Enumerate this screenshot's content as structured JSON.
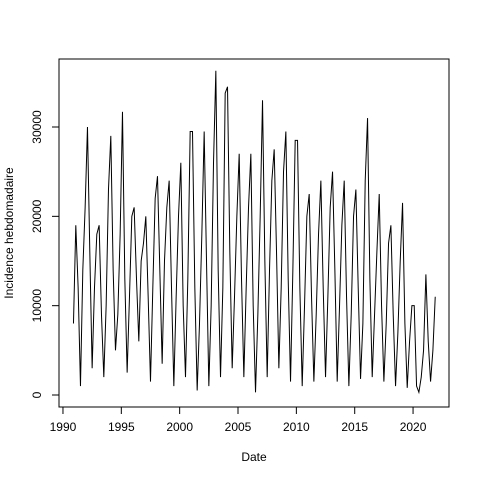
{
  "chart_data": {
    "type": "line",
    "xlabel": "Date",
    "ylabel": "Incidence hebdomadaire",
    "xlim": [
      1989.66,
      2023.08
    ],
    "ylim": [
      -1343,
      37613
    ],
    "xticks": [
      1990,
      1995,
      2000,
      2005,
      2010,
      2015,
      2020
    ],
    "yticks": [
      0,
      10000,
      20000,
      30000
    ],
    "x": [
      1990.9,
      1991.1,
      1991.3,
      1991.5,
      1991.7,
      1991.9,
      1992.1,
      1992.3,
      1992.5,
      1992.7,
      1992.9,
      1993.1,
      1993.3,
      1993.5,
      1993.7,
      1993.9,
      1994.1,
      1994.3,
      1994.5,
      1994.7,
      1994.9,
      1995.1,
      1995.3,
      1995.5,
      1995.7,
      1995.9,
      1996.1,
      1996.3,
      1996.5,
      1996.7,
      1996.9,
      1997.1,
      1997.3,
      1997.5,
      1997.7,
      1997.9,
      1998.1,
      1998.3,
      1998.5,
      1998.7,
      1998.9,
      1999.1,
      1999.3,
      1999.5,
      1999.7,
      1999.9,
      2000.1,
      2000.3,
      2000.5,
      2000.7,
      2000.9,
      2001.1,
      2001.3,
      2001.5,
      2001.7,
      2001.9,
      2002.1,
      2002.3,
      2002.5,
      2002.7,
      2002.9,
      2003.1,
      2003.3,
      2003.5,
      2003.7,
      2003.9,
      2004.1,
      2004.3,
      2004.5,
      2004.7,
      2004.9,
      2005.1,
      2005.3,
      2005.5,
      2005.7,
      2005.9,
      2006.1,
      2006.3,
      2006.5,
      2006.7,
      2006.9,
      2007.1,
      2007.3,
      2007.5,
      2007.7,
      2007.9,
      2008.1,
      2008.3,
      2008.5,
      2008.7,
      2008.9,
      2009.1,
      2009.3,
      2009.5,
      2009.7,
      2009.9,
      2010.1,
      2010.3,
      2010.5,
      2010.7,
      2010.9,
      2011.1,
      2011.3,
      2011.5,
      2011.7,
      2011.9,
      2012.1,
      2012.3,
      2012.5,
      2012.7,
      2012.9,
      2013.1,
      2013.3,
      2013.5,
      2013.7,
      2013.9,
      2014.1,
      2014.3,
      2014.5,
      2014.7,
      2014.9,
      2015.1,
      2015.3,
      2015.5,
      2015.7,
      2015.9,
      2016.1,
      2016.3,
      2016.5,
      2016.7,
      2016.9,
      2017.1,
      2017.3,
      2017.5,
      2017.7,
      2017.9,
      2018.1,
      2018.3,
      2018.5,
      2018.7,
      2018.9,
      2019.1,
      2019.3,
      2019.5,
      2019.7,
      2019.9,
      2020.1,
      2020.3,
      2020.5,
      2020.7,
      2020.9,
      2021.1,
      2021.3,
      2021.5,
      2021.7,
      2021.9
    ],
    "series": [
      {
        "color": "#000000",
        "values": [
          8000,
          19000,
          12000,
          1000,
          14000,
          21000,
          30000,
          16000,
          3000,
          12000,
          18000,
          19000,
          9000,
          2000,
          10000,
          23000,
          29000,
          14000,
          5000,
          9000,
          18000,
          31700,
          13000,
          2500,
          11000,
          20000,
          21000,
          13000,
          6000,
          15000,
          17000,
          20000,
          11000,
          1500,
          12000,
          22000,
          24500,
          14000,
          3500,
          15000,
          21000,
          24000,
          12000,
          1000,
          11000,
          20000,
          26000,
          10000,
          2000,
          13000,
          29500,
          29500,
          12000,
          500,
          8000,
          18000,
          29500,
          15000,
          1000,
          10000,
          26000,
          36300,
          14000,
          2000,
          12000,
          33800,
          34500,
          16000,
          3000,
          11000,
          20000,
          27000,
          13000,
          2000,
          12000,
          21000,
          27000,
          10000,
          300,
          9000,
          20000,
          33000,
          15000,
          2000,
          14000,
          24000,
          27500,
          16000,
          3000,
          12000,
          25000,
          29500,
          13000,
          1500,
          14000,
          28500,
          28500,
          12000,
          1000,
          10000,
          20000,
          22500,
          11000,
          1500,
          9000,
          18000,
          24000,
          12000,
          2000,
          11000,
          21000,
          25000,
          14000,
          1500,
          10000,
          19000,
          24000,
          11000,
          1000,
          9000,
          20000,
          23000,
          12000,
          1800,
          8000,
          24000,
          31000,
          13000,
          2000,
          9000,
          16000,
          22500,
          10000,
          1500,
          8000,
          17000,
          19000,
          9000,
          1000,
          7000,
          15000,
          21500,
          8000,
          800,
          6000,
          10000,
          10000,
          1000,
          300,
          2000,
          5000,
          13500,
          6000,
          1500,
          5000,
          11000
        ]
      }
    ]
  }
}
